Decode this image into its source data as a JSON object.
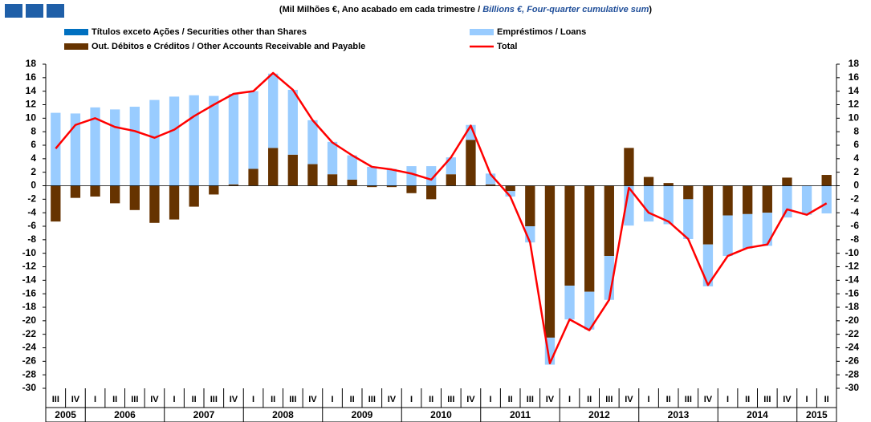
{
  "chart_data": {
    "type": "bar",
    "title": [
      "(Mil Milhões €, Ano acabado em cada trimestre / ",
      "Billions €, Four-quarter cumulative sum",
      ")"
    ],
    "categories": [
      "III",
      "IV",
      "I",
      "II",
      "III",
      "IV",
      "I",
      "II",
      "III",
      "IV",
      "I",
      "II",
      "III",
      "IV",
      "I",
      "II",
      "III",
      "IV",
      "I",
      "II",
      "III",
      "IV",
      "I",
      "II",
      "III",
      "IV",
      "I",
      "II",
      "III",
      "IV",
      "I",
      "II",
      "III",
      "IV",
      "I",
      "II",
      "III",
      "IV",
      "I",
      "II"
    ],
    "years": [
      "2005",
      null,
      "2006",
      null,
      null,
      null,
      "2007",
      null,
      null,
      null,
      "2008",
      null,
      null,
      null,
      "2009",
      null,
      null,
      null,
      "2010",
      null,
      null,
      null,
      "2011",
      null,
      null,
      null,
      "2012",
      null,
      null,
      null,
      "2013",
      null,
      null,
      null,
      "2014",
      null,
      null,
      null,
      "2015",
      null
    ],
    "series": [
      {
        "name": "Títulos exceto Ações / Securities other than Shares",
        "color": "#0070c0",
        "type": "bar",
        "values": [
          0,
          0,
          0,
          0,
          0,
          0,
          0,
          0,
          0,
          0,
          0,
          0,
          0,
          0,
          0,
          0,
          0,
          0,
          0,
          0,
          0,
          0,
          0,
          0,
          0,
          0,
          0,
          0,
          0,
          0,
          0,
          0,
          0,
          0,
          0,
          0,
          0,
          0,
          0,
          0
        ]
      },
      {
        "name": "Empréstimos / Loans",
        "color": "#99ccff",
        "type": "bar",
        "values": [
          10.8,
          10.7,
          11.6,
          11.3,
          11.7,
          12.7,
          13.2,
          13.4,
          13.3,
          13.4,
          11.5,
          11.0,
          9.6,
          6.5,
          4.8,
          3.6,
          2.8,
          2.5,
          2.9,
          2.9,
          2.5,
          2.2,
          1.6,
          -0.8,
          -2.4,
          -4.0,
          -5.0,
          -5.6,
          -6.5,
          -5.9,
          -5.3,
          -5.7,
          -5.9,
          -6.2,
          -6.0,
          -5.1,
          -4.9,
          -4.7,
          -4.3,
          -4.1
        ]
      },
      {
        "name": "Out. Débitos e Créditos / Other Accounts Receivable and Payable",
        "color": "#663300",
        "type": "bar",
        "values": [
          -5.3,
          -1.8,
          -1.6,
          -2.6,
          -3.6,
          -5.5,
          -5.0,
          -3.1,
          -1.3,
          0.2,
          2.5,
          5.6,
          4.6,
          3.2,
          1.7,
          0.9,
          -0.2,
          -0.2,
          -1.1,
          -2.0,
          1.7,
          6.8,
          0.2,
          -0.8,
          -6.0,
          -22.5,
          -14.8,
          -15.7,
          -10.4,
          5.6,
          1.3,
          0.4,
          -2.0,
          -8.7,
          -4.4,
          -4.2,
          -4.0,
          1.2,
          0,
          1.6
        ]
      },
      {
        "name": "Total",
        "color": "#ff0000",
        "type": "line",
        "values": [
          5.5,
          9.0,
          10.0,
          8.7,
          8.1,
          7.1,
          8.3,
          10.3,
          12.0,
          13.6,
          14.0,
          16.7,
          14.2,
          9.7,
          6.4,
          4.5,
          2.8,
          2.4,
          1.8,
          0.9,
          4.2,
          8.9,
          1.7,
          -1.6,
          -8.4,
          -26.3,
          -19.8,
          -21.4,
          -16.9,
          -0.3,
          -4.0,
          -5.3,
          -7.9,
          -14.7,
          -10.4,
          -9.2,
          -8.7,
          -3.5,
          -4.3,
          -2.6
        ]
      }
    ],
    "ylim": [
      -30,
      18
    ],
    "yticks": [
      -30,
      -28,
      -26,
      -24,
      -22,
      -20,
      -18,
      -16,
      -14,
      -12,
      -10,
      -8,
      -6,
      -4,
      -2,
      0,
      2,
      4,
      6,
      8,
      10,
      12,
      14,
      16,
      18
    ],
    "y2lim": [
      -30,
      18
    ],
    "y2ticks": [
      -30,
      -28,
      -26,
      -24,
      -22,
      -20,
      -18,
      -16,
      -14,
      -12,
      -10,
      -8,
      -6,
      -4,
      -2,
      0,
      2,
      4,
      6,
      8,
      10,
      12,
      14,
      16,
      18
    ],
    "grid": false
  }
}
